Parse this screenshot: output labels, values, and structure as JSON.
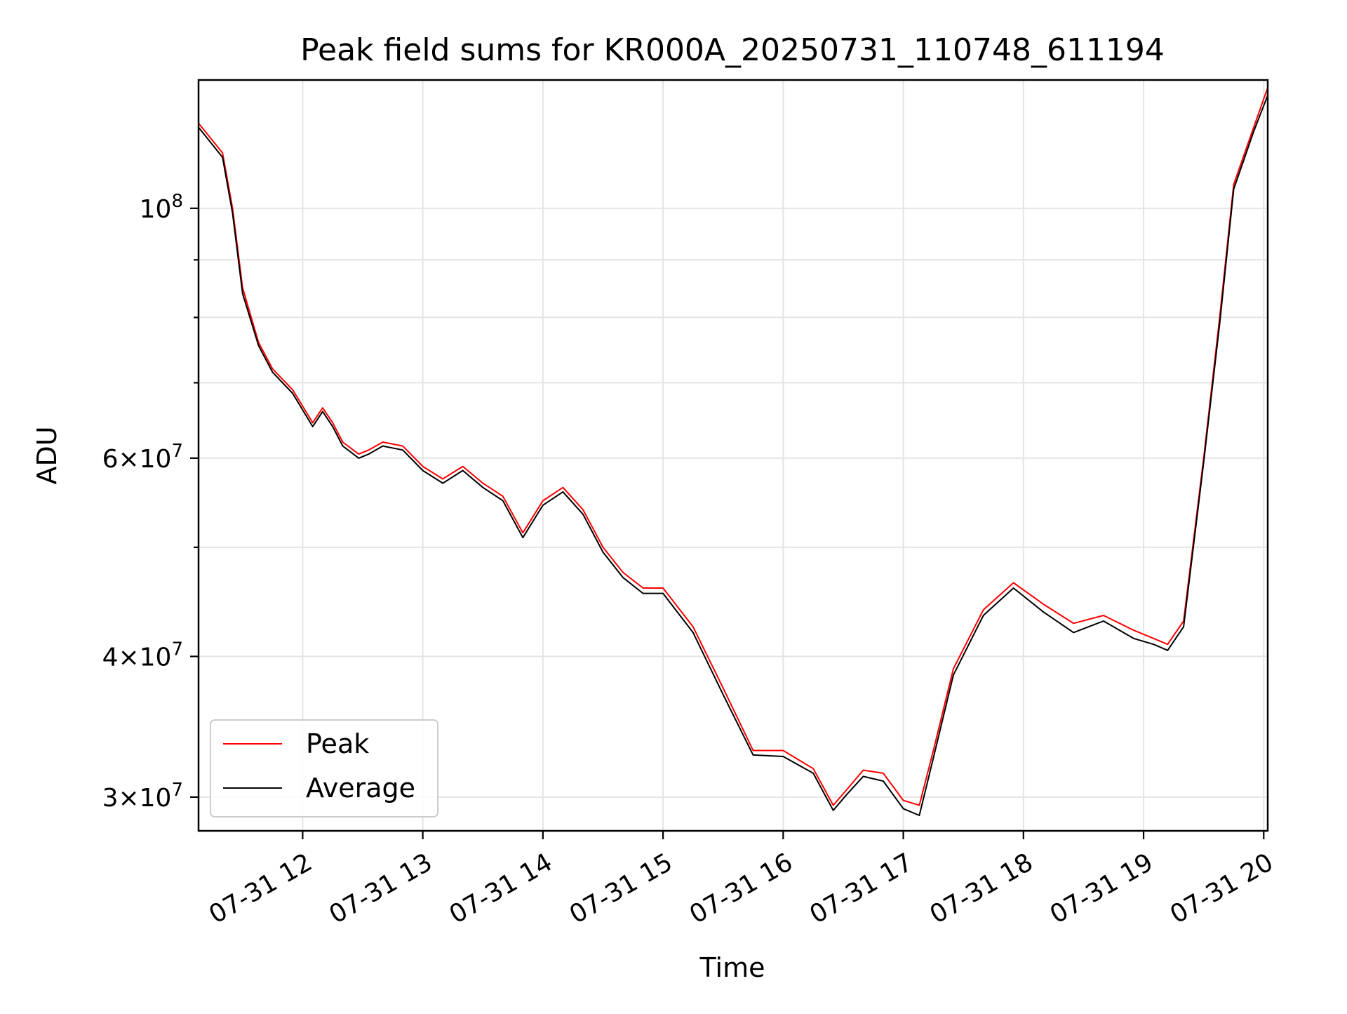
{
  "chart_data": {
    "type": "line",
    "title": "Peak field sums for KR000A_20250731_110748_611194",
    "xlabel": "Time",
    "ylabel": "ADU",
    "yscale": "log",
    "xlim": [
      "2025-07-31 11:08",
      "2025-07-31 20:02"
    ],
    "ylim": [
      28000000,
      130000000
    ],
    "grid": true,
    "legend_position": "lower-left",
    "x_tick_labels": [
      "07-31 12",
      "07-31 13",
      "07-31 14",
      "07-31 15",
      "07-31 16",
      "07-31 17",
      "07-31 18",
      "07-31 19",
      "07-31 20"
    ],
    "y_major_ticks": [
      {
        "value": 100000000,
        "mantissa": "",
        "exponent": "8"
      },
      {
        "value": 60000000,
        "mantissa": "6",
        "exponent": "7"
      },
      {
        "value": 40000000,
        "mantissa": "4",
        "exponent": "7"
      },
      {
        "value": 30000000,
        "mantissa": "3",
        "exponent": "7"
      }
    ],
    "y_minor_ticks": [
      50000000,
      70000000,
      80000000,
      90000000
    ],
    "series": [
      {
        "name": "Peak",
        "color": "#ff0000",
        "x": [
          "2025-07-31 11:08",
          "2025-07-31 11:20",
          "2025-07-31 11:25",
          "2025-07-31 11:30",
          "2025-07-31 11:38",
          "2025-07-31 11:45",
          "2025-07-31 11:55",
          "2025-07-31 12:05",
          "2025-07-31 12:10",
          "2025-07-31 12:15",
          "2025-07-31 12:20",
          "2025-07-31 12:28",
          "2025-07-31 12:33",
          "2025-07-31 12:40",
          "2025-07-31 12:50",
          "2025-07-31 13:00",
          "2025-07-31 13:10",
          "2025-07-31 13:20",
          "2025-07-31 13:30",
          "2025-07-31 13:40",
          "2025-07-31 13:50",
          "2025-07-31 14:00",
          "2025-07-31 14:10",
          "2025-07-31 14:20",
          "2025-07-31 14:30",
          "2025-07-31 14:40",
          "2025-07-31 14:50",
          "2025-07-31 15:00",
          "2025-07-31 15:15",
          "2025-07-31 15:30",
          "2025-07-31 15:45",
          "2025-07-31 16:00",
          "2025-07-31 16:15",
          "2025-07-31 16:25",
          "2025-07-31 16:32",
          "2025-07-31 16:40",
          "2025-07-31 16:50",
          "2025-07-31 17:00",
          "2025-07-31 17:08",
          "2025-07-31 17:15",
          "2025-07-31 17:25",
          "2025-07-31 17:40",
          "2025-07-31 17:55",
          "2025-07-31 18:10",
          "2025-07-31 18:25",
          "2025-07-31 18:40",
          "2025-07-31 18:55",
          "2025-07-31 19:05",
          "2025-07-31 19:12",
          "2025-07-31 19:20",
          "2025-07-31 19:30",
          "2025-07-31 19:38",
          "2025-07-31 19:45",
          "2025-07-31 19:55",
          "2025-07-31 20:02"
        ],
        "y": [
          119000000,
          112000000,
          100000000,
          85000000,
          76000000,
          72000000,
          69000000,
          64500000,
          66500000,
          64500000,
          62000000,
          60500000,
          61000000,
          62000000,
          61500000,
          59000000,
          57500000,
          59000000,
          57000000,
          55500000,
          51500000,
          55000000,
          56500000,
          54000000,
          50000000,
          47500000,
          46000000,
          46000000,
          42500000,
          37500000,
          33000000,
          33000000,
          31800000,
          29500000,
          30500000,
          31700000,
          31500000,
          29800000,
          29500000,
          33000000,
          39000000,
          44000000,
          46500000,
          44500000,
          42800000,
          43500000,
          42200000,
          41500000,
          41000000,
          43000000,
          60000000,
          80000000,
          105000000,
          118000000,
          128000000
        ]
      },
      {
        "name": "Average",
        "color": "#000000",
        "x": [
          "2025-07-31 11:08",
          "2025-07-31 11:20",
          "2025-07-31 11:25",
          "2025-07-31 11:30",
          "2025-07-31 11:38",
          "2025-07-31 11:45",
          "2025-07-31 11:55",
          "2025-07-31 12:05",
          "2025-07-31 12:10",
          "2025-07-31 12:15",
          "2025-07-31 12:20",
          "2025-07-31 12:28",
          "2025-07-31 12:33",
          "2025-07-31 12:40",
          "2025-07-31 12:50",
          "2025-07-31 13:00",
          "2025-07-31 13:10",
          "2025-07-31 13:20",
          "2025-07-31 13:30",
          "2025-07-31 13:40",
          "2025-07-31 13:50",
          "2025-07-31 14:00",
          "2025-07-31 14:10",
          "2025-07-31 14:20",
          "2025-07-31 14:30",
          "2025-07-31 14:40",
          "2025-07-31 14:50",
          "2025-07-31 15:00",
          "2025-07-31 15:15",
          "2025-07-31 15:30",
          "2025-07-31 15:45",
          "2025-07-31 16:00",
          "2025-07-31 16:15",
          "2025-07-31 16:25",
          "2025-07-31 16:32",
          "2025-07-31 16:40",
          "2025-07-31 16:50",
          "2025-07-31 17:00",
          "2025-07-31 17:08",
          "2025-07-31 17:15",
          "2025-07-31 17:25",
          "2025-07-31 17:40",
          "2025-07-31 17:55",
          "2025-07-31 18:10",
          "2025-07-31 18:25",
          "2025-07-31 18:40",
          "2025-07-31 18:55",
          "2025-07-31 19:05",
          "2025-07-31 19:12",
          "2025-07-31 19:20",
          "2025-07-31 19:30",
          "2025-07-31 19:38",
          "2025-07-31 19:45",
          "2025-07-31 19:55",
          "2025-07-31 20:02"
        ],
        "y": [
          118000000,
          111000000,
          99000000,
          84000000,
          75500000,
          71500000,
          68500000,
          64000000,
          66000000,
          64000000,
          61500000,
          60000000,
          60500000,
          61500000,
          61000000,
          58500000,
          57000000,
          58500000,
          56500000,
          55000000,
          51000000,
          54500000,
          56000000,
          53500000,
          49500000,
          47000000,
          45500000,
          45500000,
          42000000,
          37000000,
          32700000,
          32600000,
          31500000,
          29200000,
          30200000,
          31300000,
          31000000,
          29300000,
          28900000,
          32500000,
          38500000,
          43500000,
          46000000,
          43800000,
          42000000,
          43000000,
          41500000,
          41000000,
          40500000,
          42500000,
          59500000,
          79000000,
          104000000,
          117000000,
          126000000
        ]
      }
    ]
  }
}
